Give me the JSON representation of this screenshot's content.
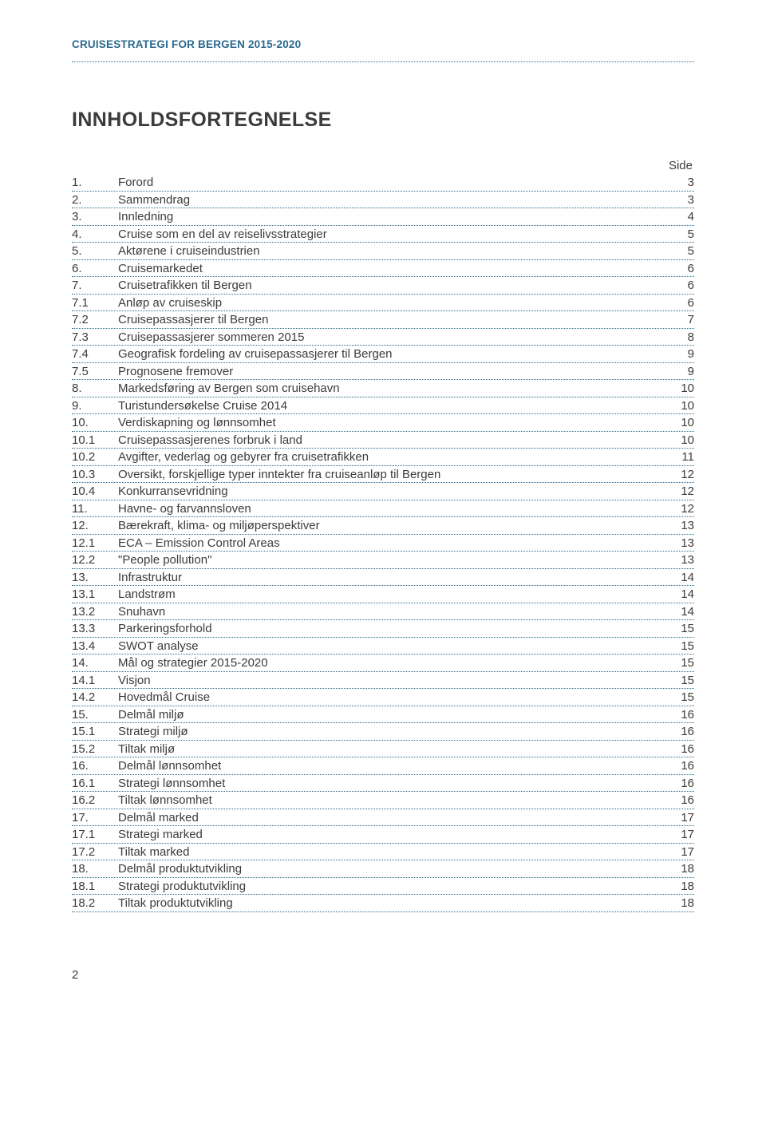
{
  "header": "CRUISESTRATEGI FOR BERGEN 2015-2020",
  "toc_title": "INNHOLDSFORTEGNELSE",
  "side_label": "Side",
  "page_number": "2",
  "entries": [
    {
      "num": "1.",
      "label": "Forord",
      "page": "3"
    },
    {
      "num": "2.",
      "label": "Sammendrag",
      "page": "3"
    },
    {
      "num": "3.",
      "label": "Innledning",
      "page": "4"
    },
    {
      "num": "4.",
      "label": "Cruise som en del av reiselivsstrategier",
      "page": "5"
    },
    {
      "num": "5.",
      "label": "Aktørene i cruiseindustrien",
      "page": "5"
    },
    {
      "num": "6.",
      "label": "Cruisemarkedet",
      "page": "6"
    },
    {
      "num": "7.",
      "label": "Cruisetrafikken til Bergen",
      "page": "6"
    },
    {
      "num": "7.1",
      "label": "Anløp av cruiseskip",
      "page": "6"
    },
    {
      "num": "7.2",
      "label": "Cruisepassasjerer til Bergen",
      "page": "7"
    },
    {
      "num": "7.3",
      "label": "Cruisepassasjerer sommeren 2015",
      "page": "8"
    },
    {
      "num": "7.4",
      "label": "Geografisk fordeling av cruisepassasjerer til Bergen",
      "page": "9"
    },
    {
      "num": "7.5",
      "label": "Prognosene fremover",
      "page": "9"
    },
    {
      "num": "8.",
      "label": "Markedsføring av Bergen som cruisehavn",
      "page": "10"
    },
    {
      "num": "9.",
      "label": "Turistundersøkelse Cruise 2014",
      "page": "10"
    },
    {
      "num": "10.",
      "label": "Verdiskapning og lønnsomhet",
      "page": "10"
    },
    {
      "num": "10.1",
      "label": "Cruisepassasjerenes forbruk i land",
      "page": "10"
    },
    {
      "num": "10.2",
      "label": "Avgifter, vederlag og gebyrer fra cruisetrafikken",
      "page": "11"
    },
    {
      "num": "10.3",
      "label": "Oversikt, forskjellige typer inntekter fra cruiseanløp til Bergen",
      "page": "12"
    },
    {
      "num": "10.4",
      "label": "Konkurransevridning",
      "page": "12"
    },
    {
      "num": "11.",
      "label": "Havne- og farvannsloven",
      "page": "12"
    },
    {
      "num": "12.",
      "label": "Bærekraft, klima- og miljøperspektiver",
      "page": "13"
    },
    {
      "num": "12.1",
      "label": "ECA – Emission Control Areas",
      "page": "13"
    },
    {
      "num": "12.2",
      "label": "\"People pollution\"",
      "page": "13"
    },
    {
      "num": "13.",
      "label": "Infrastruktur",
      "page": "14"
    },
    {
      "num": "13.1",
      "label": "Landstrøm",
      "page": "14"
    },
    {
      "num": "13.2",
      "label": "Snuhavn",
      "page": "14"
    },
    {
      "num": "13.3",
      "label": "Parkeringsforhold",
      "page": "15"
    },
    {
      "num": "13.4",
      "label": "SWOT analyse",
      "page": "15"
    },
    {
      "num": "14.",
      "label": "Mål og strategier 2015-2020",
      "page": "15"
    },
    {
      "num": "14.1",
      "label": "Visjon",
      "page": "15"
    },
    {
      "num": "14.2",
      "label": "Hovedmål Cruise",
      "page": "15"
    },
    {
      "num": "15.",
      "label": "Delmål miljø",
      "page": "16"
    },
    {
      "num": "15.1",
      "label": "Strategi miljø",
      "page": "16"
    },
    {
      "num": "15.2",
      "label": "Tiltak miljø",
      "page": "16"
    },
    {
      "num": "16.",
      "label": "Delmål lønnsomhet",
      "page": "16"
    },
    {
      "num": "16.1",
      "label": "Strategi lønnsomhet",
      "page": "16"
    },
    {
      "num": "16.2",
      "label": "Tiltak lønnsomhet",
      "page": "16"
    },
    {
      "num": "17.",
      "label": "Delmål marked",
      "page": "17"
    },
    {
      "num": "17.1",
      "label": "Strategi marked",
      "page": "17"
    },
    {
      "num": "17.2",
      "label": "Tiltak marked",
      "page": "17"
    },
    {
      "num": "18.",
      "label": "Delmål produktutvikling",
      "page": "18"
    },
    {
      "num": "18.1",
      "label": "Strategi produktutvikling",
      "page": "18"
    },
    {
      "num": "18.2",
      "label": "Tiltak produktutvikling",
      "page": "18"
    }
  ],
  "style": {
    "accent_color": "#2a6a8f",
    "text_color": "#3b3b3b",
    "dotted_border": "1.4px dotted #2a6a8f"
  }
}
